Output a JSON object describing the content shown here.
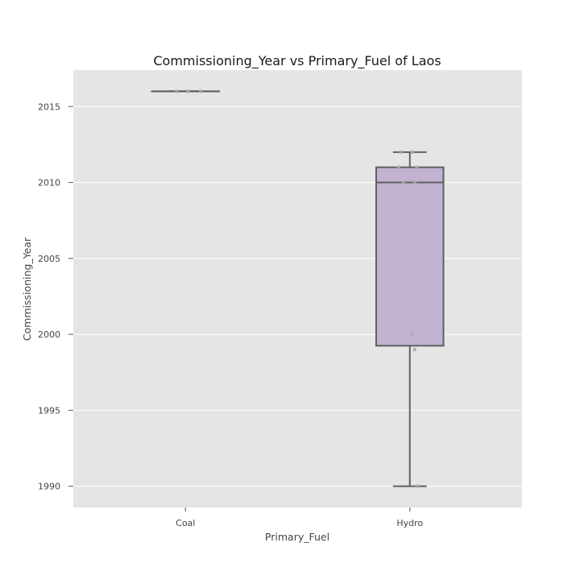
{
  "chart_data": {
    "type": "box",
    "title": "Commissioning_Year vs  Primary_Fuel of Laos",
    "xlabel": "Primary_Fuel",
    "ylabel": "Commissioning_Year",
    "ylim": [
      1988.6,
      2017.4
    ],
    "yticks": [
      1990,
      1995,
      2000,
      2005,
      2010,
      2015
    ],
    "grid": true,
    "categories": [
      "Coal",
      "Hydro"
    ],
    "boxes": [
      {
        "category": "Coal",
        "whisker_low": 2016,
        "q1": 2016,
        "median": 2016,
        "q3": 2016,
        "whisker_high": 2016
      },
      {
        "category": "Hydro",
        "whisker_low": 1990,
        "q1": 1999.25,
        "median": 2010,
        "q3": 2011,
        "whisker_high": 2012
      }
    ],
    "points": [
      {
        "category": "Coal",
        "values": [
          2016,
          2016,
          2016
        ]
      },
      {
        "category": "Hydro",
        "values": [
          2012,
          2012,
          2011,
          2011,
          2010,
          2010,
          2000,
          1999,
          1990
        ]
      }
    ],
    "colors": {
      "plot_background": "#e5e5e5",
      "grid": "#ffffff",
      "box_fill": "#c1b2d1",
      "box_line": "#606060",
      "point": "#a9a9a9"
    }
  }
}
